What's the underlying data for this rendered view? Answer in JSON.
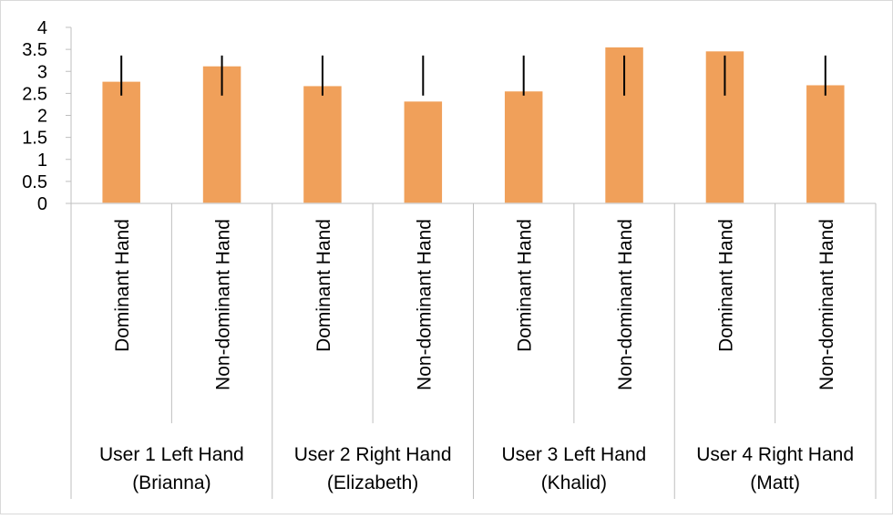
{
  "chart_data": {
    "type": "bar",
    "title": "",
    "xlabel": "",
    "ylabel": "",
    "ylim": [
      0,
      4
    ],
    "yticks": [
      "0",
      "0.5",
      "1",
      "1.5",
      "2",
      "2.5",
      "3",
      "3.5",
      "4"
    ],
    "grid": false,
    "legend": "none",
    "bar_color": "#F0A05A",
    "errorbar_color": "#000000",
    "groups": [
      {
        "label": [
          "User 1 Left Hand",
          "(Brianna)"
        ],
        "categories": [
          "Dominant Hand",
          "Non-dominant Hand"
        ]
      },
      {
        "label": [
          "User 2 Right Hand",
          "(Elizabeth)"
        ],
        "categories": [
          "Dominant Hand",
          "Non-dominant Hand"
        ]
      },
      {
        "label": [
          "User 3 Left Hand",
          "(Khalid)"
        ],
        "categories": [
          "Dominant Hand",
          "Non-dominant Hand"
        ]
      },
      {
        "label": [
          "User 4 Right Hand",
          "(Matt)"
        ],
        "categories": [
          "Dominant Hand",
          "Non-dominant Hand"
        ]
      }
    ],
    "values": [
      2.78,
      3.13,
      2.68,
      2.33,
      2.56,
      3.56,
      3.47,
      2.7
    ],
    "error_bars": [
      [
        2.45,
        3.36
      ],
      [
        2.45,
        3.36
      ],
      [
        2.45,
        3.36
      ],
      [
        2.45,
        3.36
      ],
      [
        2.45,
        3.36
      ],
      [
        2.45,
        3.36
      ],
      [
        2.45,
        3.36
      ],
      [
        2.45,
        3.36
      ]
    ]
  }
}
